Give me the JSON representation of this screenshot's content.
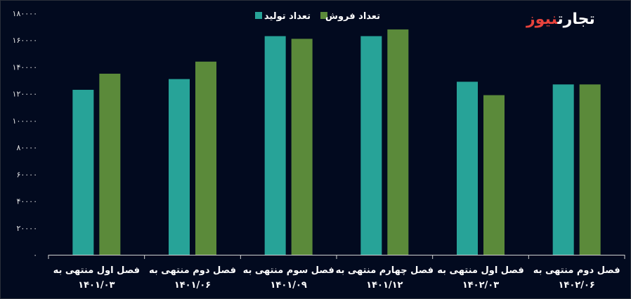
{
  "logo": {
    "part1": "تجارت",
    "part2": "نیوز"
  },
  "colors": {
    "production": "#27a398",
    "sales": "#5b8a3a",
    "background": "#020a1f",
    "text": "#ffffff"
  },
  "chart_data": {
    "type": "bar",
    "title": "",
    "xlabel": "",
    "ylabel": "",
    "ylim": [
      0,
      180000
    ],
    "yticks": [
      "۰",
      "۲۰۰۰۰",
      "۴۰۰۰۰",
      "۶۰۰۰۰",
      "۸۰۰۰۰",
      "۱۰۰۰۰۰",
      "۱۲۰۰۰۰",
      "۱۴۰۰۰۰",
      "۱۶۰۰۰۰",
      "۱۸۰۰۰۰"
    ],
    "grid": false,
    "legend_position": "top-center",
    "categories": [
      [
        "فصل اول منتهی به",
        "۱۴۰۱/۰۳"
      ],
      [
        "فصل دوم منتهی به",
        "۱۴۰۱/۰۶"
      ],
      [
        "فصل سوم منتهی به",
        "۱۴۰۱/۰۹"
      ],
      [
        "فصل چهارم منتهی به",
        "۱۴۰۱/۱۲"
      ],
      [
        "فصل اول منتهی به",
        "۱۴۰۲/۰۳"
      ],
      [
        "فصل دوم منتهی به",
        "۱۴۰۲/۰۶"
      ]
    ],
    "series": [
      {
        "name": "تعداد تولید",
        "color": "#27a398",
        "values": [
          123000,
          131000,
          163000,
          163000,
          129000,
          127000
        ]
      },
      {
        "name": "تعداد فروش",
        "color": "#5b8a3a",
        "values": [
          135000,
          144000,
          161000,
          168000,
          119000,
          127000
        ]
      }
    ]
  }
}
